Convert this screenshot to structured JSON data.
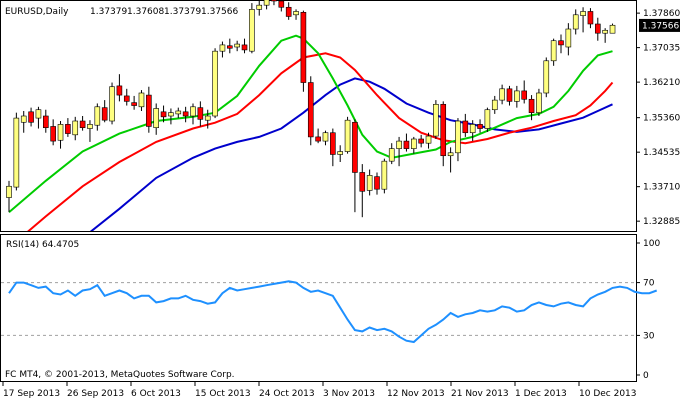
{
  "chart_data": [
    {
      "type": "candlestick",
      "symbol_label": "EURUSD,Daily",
      "ohlc_header": [
        "1.37379",
        "1.37608",
        "1.37379",
        "1.37566"
      ],
      "current_price": "1.37566",
      "ylim": [
        1.3265,
        1.3815
      ],
      "y_ticks": [
        "1.37860",
        "1.37035",
        "1.36210",
        "1.35360",
        "1.34535",
        "1.33710",
        "1.32885"
      ],
      "x_labels": [
        "17 Sep 2013",
        "26 Sep 2013",
        "6 Oct 2013",
        "15 Oct 2013",
        "24 Oct 2013",
        "3 Nov 2013",
        "12 Nov 2013",
        "21 Nov 2013",
        "1 Dec 2013",
        "10 Dec 2013"
      ],
      "colors": {
        "up": "#ffff80",
        "down": "#ff0000",
        "wick": "#000000",
        "ma_fast": "#00cc00",
        "ma_mid": "#ff0000",
        "ma_slow": "#0000cc"
      },
      "candles": [
        {
          "o": 1.3345,
          "h": 1.3385,
          "l": 1.331,
          "c": 1.3372
        },
        {
          "o": 1.337,
          "h": 1.3548,
          "l": 1.3362,
          "c": 1.3535
        },
        {
          "o": 1.3525,
          "h": 1.3552,
          "l": 1.35,
          "c": 1.354
        },
        {
          "o": 1.355,
          "h": 1.356,
          "l": 1.3515,
          "c": 1.3525
        },
        {
          "o": 1.3535,
          "h": 1.3562,
          "l": 1.351,
          "c": 1.3555
        },
        {
          "o": 1.354,
          "h": 1.3555,
          "l": 1.35,
          "c": 1.3512
        },
        {
          "o": 1.3515,
          "h": 1.3532,
          "l": 1.347,
          "c": 1.348
        },
        {
          "o": 1.3482,
          "h": 1.3528,
          "l": 1.3462,
          "c": 1.352
        },
        {
          "o": 1.352,
          "h": 1.3535,
          "l": 1.349,
          "c": 1.3498
        },
        {
          "o": 1.3495,
          "h": 1.3538,
          "l": 1.3482,
          "c": 1.3528
        },
        {
          "o": 1.3528,
          "h": 1.354,
          "l": 1.3505,
          "c": 1.3512
        },
        {
          "o": 1.351,
          "h": 1.353,
          "l": 1.3478,
          "c": 1.352
        },
        {
          "o": 1.3518,
          "h": 1.357,
          "l": 1.3505,
          "c": 1.3562
        },
        {
          "o": 1.356,
          "h": 1.3578,
          "l": 1.3525,
          "c": 1.353
        },
        {
          "o": 1.3528,
          "h": 1.362,
          "l": 1.352,
          "c": 1.361
        },
        {
          "o": 1.3612,
          "h": 1.364,
          "l": 1.3575,
          "c": 1.359
        },
        {
          "o": 1.3588,
          "h": 1.3605,
          "l": 1.3565,
          "c": 1.3575
        },
        {
          "o": 1.3572,
          "h": 1.3588,
          "l": 1.3555,
          "c": 1.3565
        },
        {
          "o": 1.3562,
          "h": 1.3602,
          "l": 1.3552,
          "c": 1.3595
        },
        {
          "o": 1.359,
          "h": 1.361,
          "l": 1.35,
          "c": 1.3515
        },
        {
          "o": 1.3512,
          "h": 1.357,
          "l": 1.3495,
          "c": 1.3558
        },
        {
          "o": 1.355,
          "h": 1.3565,
          "l": 1.3525,
          "c": 1.3538
        },
        {
          "o": 1.354,
          "h": 1.3558,
          "l": 1.352,
          "c": 1.3548
        },
        {
          "o": 1.3545,
          "h": 1.356,
          "l": 1.3535,
          "c": 1.3552
        },
        {
          "o": 1.355,
          "h": 1.3562,
          "l": 1.3525,
          "c": 1.354
        },
        {
          "o": 1.354,
          "h": 1.357,
          "l": 1.352,
          "c": 1.3562
        },
        {
          "o": 1.356,
          "h": 1.3575,
          "l": 1.3515,
          "c": 1.3532
        },
        {
          "o": 1.353,
          "h": 1.3555,
          "l": 1.351,
          "c": 1.354
        },
        {
          "o": 1.354,
          "h": 1.3702,
          "l": 1.3535,
          "c": 1.3695
        },
        {
          "o": 1.3695,
          "h": 1.3718,
          "l": 1.368,
          "c": 1.371
        },
        {
          "o": 1.3708,
          "h": 1.3725,
          "l": 1.369,
          "c": 1.3702
        },
        {
          "o": 1.3705,
          "h": 1.372,
          "l": 1.3695,
          "c": 1.3712
        },
        {
          "o": 1.371,
          "h": 1.3725,
          "l": 1.369,
          "c": 1.3698
        },
        {
          "o": 1.3695,
          "h": 1.381,
          "l": 1.369,
          "c": 1.3795
        },
        {
          "o": 1.3795,
          "h": 1.3815,
          "l": 1.378,
          "c": 1.3805
        },
        {
          "o": 1.3805,
          "h": 1.383,
          "l": 1.3795,
          "c": 1.3818
        },
        {
          "o": 1.3818,
          "h": 1.3835,
          "l": 1.3805,
          "c": 1.3815
        },
        {
          "o": 1.3815,
          "h": 1.3822,
          "l": 1.379,
          "c": 1.38
        },
        {
          "o": 1.38,
          "h": 1.3812,
          "l": 1.377,
          "c": 1.3778
        },
        {
          "o": 1.3782,
          "h": 1.3795,
          "l": 1.377,
          "c": 1.379
        },
        {
          "o": 1.3788,
          "h": 1.3792,
          "l": 1.3598,
          "c": 1.362
        },
        {
          "o": 1.362,
          "h": 1.3635,
          "l": 1.347,
          "c": 1.349
        },
        {
          "o": 1.349,
          "h": 1.351,
          "l": 1.3475,
          "c": 1.348
        },
        {
          "o": 1.348,
          "h": 1.3505,
          "l": 1.347,
          "c": 1.35
        },
        {
          "o": 1.35,
          "h": 1.351,
          "l": 1.342,
          "c": 1.3448
        },
        {
          "o": 1.3448,
          "h": 1.347,
          "l": 1.343,
          "c": 1.3455
        },
        {
          "o": 1.3455,
          "h": 1.3538,
          "l": 1.345,
          "c": 1.353
        },
        {
          "o": 1.3525,
          "h": 1.3532,
          "l": 1.331,
          "c": 1.3405
        },
        {
          "o": 1.3405,
          "h": 1.3425,
          "l": 1.3298,
          "c": 1.336
        },
        {
          "o": 1.3362,
          "h": 1.3412,
          "l": 1.335,
          "c": 1.3398
        },
        {
          "o": 1.3395,
          "h": 1.3405,
          "l": 1.3352,
          "c": 1.3365
        },
        {
          "o": 1.3365,
          "h": 1.3438,
          "l": 1.3355,
          "c": 1.3432
        },
        {
          "o": 1.3432,
          "h": 1.3475,
          "l": 1.3425,
          "c": 1.3462
        },
        {
          "o": 1.3462,
          "h": 1.349,
          "l": 1.342,
          "c": 1.348
        },
        {
          "o": 1.348,
          "h": 1.3498,
          "l": 1.3455,
          "c": 1.3462
        },
        {
          "o": 1.3462,
          "h": 1.349,
          "l": 1.345,
          "c": 1.3485
        },
        {
          "o": 1.3485,
          "h": 1.3495,
          "l": 1.3465,
          "c": 1.3475
        },
        {
          "o": 1.3475,
          "h": 1.35,
          "l": 1.3462,
          "c": 1.3492
        },
        {
          "o": 1.3492,
          "h": 1.3578,
          "l": 1.3485,
          "c": 1.3568
        },
        {
          "o": 1.3568,
          "h": 1.3575,
          "l": 1.342,
          "c": 1.3445
        },
        {
          "o": 1.3445,
          "h": 1.3465,
          "l": 1.3405,
          "c": 1.3452
        },
        {
          "o": 1.3452,
          "h": 1.3535,
          "l": 1.3432,
          "c": 1.3528
        },
        {
          "o": 1.3528,
          "h": 1.3545,
          "l": 1.349,
          "c": 1.35
        },
        {
          "o": 1.35,
          "h": 1.353,
          "l": 1.348,
          "c": 1.352
        },
        {
          "o": 1.352,
          "h": 1.3532,
          "l": 1.35,
          "c": 1.351
        },
        {
          "o": 1.351,
          "h": 1.356,
          "l": 1.3502,
          "c": 1.3555
        },
        {
          "o": 1.3555,
          "h": 1.3588,
          "l": 1.3545,
          "c": 1.3578
        },
        {
          "o": 1.3578,
          "h": 1.3615,
          "l": 1.3568,
          "c": 1.3605
        },
        {
          "o": 1.3605,
          "h": 1.3612,
          "l": 1.3565,
          "c": 1.3575
        },
        {
          "o": 1.3575,
          "h": 1.3612,
          "l": 1.356,
          "c": 1.36
        },
        {
          "o": 1.36,
          "h": 1.3625,
          "l": 1.357,
          "c": 1.358
        },
        {
          "o": 1.358,
          "h": 1.359,
          "l": 1.353,
          "c": 1.3548
        },
        {
          "o": 1.3548,
          "h": 1.3605,
          "l": 1.354,
          "c": 1.3595
        },
        {
          "o": 1.3595,
          "h": 1.368,
          "l": 1.3585,
          "c": 1.3672
        },
        {
          "o": 1.3672,
          "h": 1.3725,
          "l": 1.366,
          "c": 1.372
        },
        {
          "o": 1.372,
          "h": 1.3735,
          "l": 1.369,
          "c": 1.371
        },
        {
          "o": 1.3705,
          "h": 1.3762,
          "l": 1.3685,
          "c": 1.3748
        },
        {
          "o": 1.3748,
          "h": 1.3795,
          "l": 1.3735,
          "c": 1.3782
        },
        {
          "o": 1.378,
          "h": 1.38,
          "l": 1.374,
          "c": 1.379
        },
        {
          "o": 1.379,
          "h": 1.3798,
          "l": 1.375,
          "c": 1.376
        },
        {
          "o": 1.376,
          "h": 1.3775,
          "l": 1.372,
          "c": 1.3738
        },
        {
          "o": 1.3738,
          "h": 1.375,
          "l": 1.3715,
          "c": 1.3745
        },
        {
          "o": 1.3738,
          "h": 1.3761,
          "l": 1.3738,
          "c": 1.3757
        }
      ],
      "ma_fast": [
        {
          "x": 0,
          "y": 1.331
        },
        {
          "x": 5,
          "y": 1.3385
        },
        {
          "x": 10,
          "y": 1.3455
        },
        {
          "x": 15,
          "y": 1.3498
        },
        {
          "x": 20,
          "y": 1.3528
        },
        {
          "x": 25,
          "y": 1.3538
        },
        {
          "x": 28,
          "y": 1.3548
        },
        {
          "x": 31,
          "y": 1.3588
        },
        {
          "x": 34,
          "y": 1.366
        },
        {
          "x": 37,
          "y": 1.372
        },
        {
          "x": 39,
          "y": 1.3732
        },
        {
          "x": 40,
          "y": 1.3725
        },
        {
          "x": 42,
          "y": 1.369
        },
        {
          "x": 44,
          "y": 1.363
        },
        {
          "x": 46,
          "y": 1.3565
        },
        {
          "x": 48,
          "y": 1.3495
        },
        {
          "x": 50,
          "y": 1.3455
        },
        {
          "x": 52,
          "y": 1.344
        },
        {
          "x": 55,
          "y": 1.345
        },
        {
          "x": 58,
          "y": 1.346
        },
        {
          "x": 60,
          "y": 1.3478
        },
        {
          "x": 63,
          "y": 1.349
        },
        {
          "x": 66,
          "y": 1.3512
        },
        {
          "x": 69,
          "y": 1.3535
        },
        {
          "x": 72,
          "y": 1.3545
        },
        {
          "x": 74,
          "y": 1.3562
        },
        {
          "x": 76,
          "y": 1.36
        },
        {
          "x": 78,
          "y": 1.3648
        },
        {
          "x": 80,
          "y": 1.3685
        },
        {
          "x": 82,
          "y": 1.3695
        }
      ],
      "ma_mid": [
        {
          "x": 0,
          "y": 1.3225
        },
        {
          "x": 5,
          "y": 1.33
        },
        {
          "x": 10,
          "y": 1.3372
        },
        {
          "x": 15,
          "y": 1.343
        },
        {
          "x": 20,
          "y": 1.3478
        },
        {
          "x": 25,
          "y": 1.351
        },
        {
          "x": 28,
          "y": 1.3524
        },
        {
          "x": 31,
          "y": 1.3545
        },
        {
          "x": 34,
          "y": 1.359
        },
        {
          "x": 37,
          "y": 1.3642
        },
        {
          "x": 40,
          "y": 1.368
        },
        {
          "x": 43,
          "y": 1.369
        },
        {
          "x": 45,
          "y": 1.368
        },
        {
          "x": 47,
          "y": 1.365
        },
        {
          "x": 50,
          "y": 1.359
        },
        {
          "x": 53,
          "y": 1.3535
        },
        {
          "x": 56,
          "y": 1.35
        },
        {
          "x": 59,
          "y": 1.3482
        },
        {
          "x": 62,
          "y": 1.3475
        },
        {
          "x": 65,
          "y": 1.3485
        },
        {
          "x": 68,
          "y": 1.35
        },
        {
          "x": 71,
          "y": 1.3512
        },
        {
          "x": 74,
          "y": 1.3528
        },
        {
          "x": 77,
          "y": 1.3542
        },
        {
          "x": 79,
          "y": 1.3565
        },
        {
          "x": 81,
          "y": 1.36
        },
        {
          "x": 82,
          "y": 1.362
        }
      ],
      "ma_slow": [
        {
          "x": 0,
          "y": 1.31
        },
        {
          "x": 5,
          "y": 1.3175
        },
        {
          "x": 10,
          "y": 1.3248
        },
        {
          "x": 15,
          "y": 1.3318
        },
        {
          "x": 20,
          "y": 1.3392
        },
        {
          "x": 25,
          "y": 1.344
        },
        {
          "x": 28,
          "y": 1.3462
        },
        {
          "x": 31,
          "y": 1.3478
        },
        {
          "x": 34,
          "y": 1.349
        },
        {
          "x": 37,
          "y": 1.351
        },
        {
          "x": 40,
          "y": 1.3548
        },
        {
          "x": 43,
          "y": 1.359
        },
        {
          "x": 45,
          "y": 1.3615
        },
        {
          "x": 47,
          "y": 1.363
        },
        {
          "x": 49,
          "y": 1.3622
        },
        {
          "x": 51,
          "y": 1.3605
        },
        {
          "x": 54,
          "y": 1.357
        },
        {
          "x": 57,
          "y": 1.3548
        },
        {
          "x": 60,
          "y": 1.353
        },
        {
          "x": 63,
          "y": 1.352
        },
        {
          "x": 66,
          "y": 1.3508
        },
        {
          "x": 69,
          "y": 1.3502
        },
        {
          "x": 72,
          "y": 1.3508
        },
        {
          "x": 75,
          "y": 1.3522
        },
        {
          "x": 78,
          "y": 1.3536
        },
        {
          "x": 80,
          "y": 1.3552
        },
        {
          "x": 82,
          "y": 1.3568
        }
      ]
    },
    {
      "type": "line",
      "label": "RSI(14) 64.4705",
      "ylim": [
        0,
        100
      ],
      "y_ticks": [
        "100",
        "70",
        "30",
        "0"
      ],
      "levels": [
        70,
        30
      ],
      "color": "#1e90ff",
      "values": [
        62,
        70,
        70,
        68,
        66,
        67,
        62,
        61,
        64,
        60,
        64,
        65,
        68,
        60,
        62,
        64,
        62,
        58,
        60,
        60,
        55,
        56,
        58,
        58,
        60,
        57,
        56,
        54,
        55,
        62,
        66,
        64,
        65,
        66,
        67,
        68,
        69,
        70,
        71,
        70,
        66,
        63,
        64,
        62,
        60,
        51,
        42,
        34,
        33,
        36,
        34,
        35,
        33,
        29,
        26,
        25,
        30,
        35,
        38,
        42,
        47,
        44,
        46,
        47,
        49,
        48,
        49,
        52,
        51,
        48,
        49,
        53,
        55,
        53,
        52,
        54,
        55,
        53,
        52,
        58,
        61,
        63,
        66,
        67,
        66,
        63,
        62,
        62,
        64
      ]
    }
  ],
  "footer": "FC MT4, © 2001-2013, MetaQuotes Software Corp."
}
